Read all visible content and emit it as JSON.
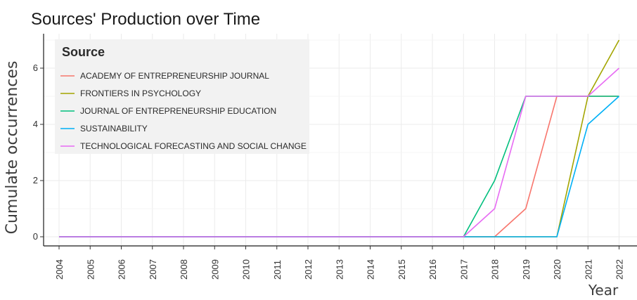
{
  "chart_data": {
    "type": "line",
    "title": "Sources' Production over Time",
    "xlabel": "Year",
    "ylabel": "Cumulate occurrences",
    "x": [
      "2004",
      "2005",
      "2006",
      "2007",
      "2008",
      "2009",
      "2010",
      "2011",
      "2012",
      "2013",
      "2014",
      "2015",
      "2016",
      "2017",
      "2018",
      "2019",
      "2020",
      "2021",
      "2022"
    ],
    "ylim": [
      0,
      7
    ],
    "yticks": [
      0,
      2,
      4,
      6
    ],
    "grid": true,
    "legend": {
      "title": "Source",
      "placement": "top-left"
    },
    "series": [
      {
        "name": "ACADEMY OF ENTREPRENEURSHIP JOURNAL",
        "color": "#F8766D",
        "values": [
          0,
          0,
          0,
          0,
          0,
          0,
          0,
          0,
          0,
          0,
          0,
          0,
          0,
          0,
          0,
          1,
          5,
          5,
          5
        ]
      },
      {
        "name": "FRONTIERS IN PSYCHOLOGY",
        "color": "#A3A500",
        "values": [
          0,
          0,
          0,
          0,
          0,
          0,
          0,
          0,
          0,
          0,
          0,
          0,
          0,
          0,
          0,
          0,
          0,
          5,
          7
        ]
      },
      {
        "name": "JOURNAL OF ENTREPRENEURSHIP EDUCATION",
        "color": "#00BF7D",
        "values": [
          0,
          0,
          0,
          0,
          0,
          0,
          0,
          0,
          0,
          0,
          0,
          0,
          0,
          0,
          2,
          5,
          5,
          5,
          5
        ]
      },
      {
        "name": "SUSTAINABILITY",
        "color": "#00B0F6",
        "values": [
          0,
          0,
          0,
          0,
          0,
          0,
          0,
          0,
          0,
          0,
          0,
          0,
          0,
          0,
          0,
          0,
          0,
          4,
          5
        ]
      },
      {
        "name": "TECHNOLOGICAL FORECASTING AND SOCIAL CHANGE",
        "color": "#E76BF3",
        "values": [
          0,
          0,
          0,
          0,
          0,
          0,
          0,
          0,
          0,
          0,
          0,
          0,
          0,
          0,
          1,
          5,
          5,
          5,
          6
        ]
      }
    ]
  }
}
